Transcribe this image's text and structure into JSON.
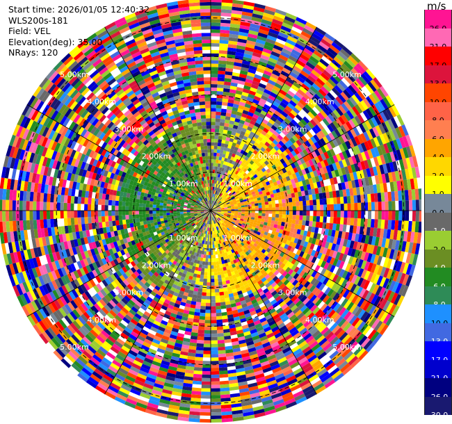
{
  "header": {
    "start_time": "Start time: 2026/01/05 12:40:32",
    "instrument": "WLS200s-181",
    "field": "Field: VEL",
    "elevation": "Elevation(deg): 35.00",
    "nrays": "NRays: 120"
  },
  "chart_data": {
    "type": "heatmap",
    "projection": "polar PPI",
    "field": "VEL",
    "units": "m/s",
    "elevation_deg": 35.0,
    "n_rays": 120,
    "range_rings_km": [
      1,
      2,
      3,
      4,
      5
    ],
    "range_labels": [
      "1.00km",
      "2.00km",
      "3.00km",
      "4.00km",
      "5.00km"
    ],
    "max_range_km": 5.5,
    "colorbar": {
      "title": "m/s",
      "ticks": [
        "26.0",
        "21.0",
        "17.0",
        "13.0",
        "10.0",
        "8.0",
        "6.0",
        "4.0",
        "2.0",
        "1.0",
        "0.0",
        "-1.0",
        "-2.0",
        "-4.0",
        "-6.0",
        "-8.0",
        "-10.0",
        "-13.0",
        "-17.0",
        "-21.0",
        "-26.0",
        "-30.0"
      ],
      "colors": [
        "#ff1493",
        "#ff69b4",
        "#ff0000",
        "#dc143c",
        "#ff4500",
        "#ff6347",
        "#ff7f50",
        "#ffa500",
        "#ffd700",
        "#ffff00",
        "#778899",
        "#696969",
        "#9acd32",
        "#6b8e23",
        "#228b22",
        "#2e8b57",
        "#1e90ff",
        "#4169e1",
        "#0000ff",
        "#0000cd",
        "#000080",
        "#191970"
      ]
    }
  }
}
